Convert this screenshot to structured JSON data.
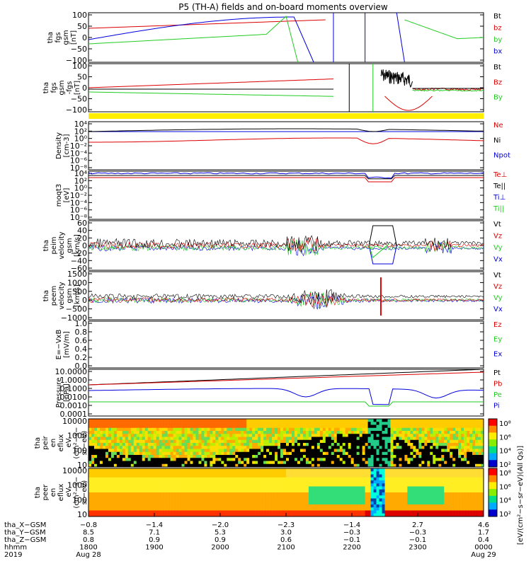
{
  "title": "P5 (TH-A) fields and on-board moments overview",
  "colors": {
    "black": "#000000",
    "red": "#dd0000",
    "green": "#22cc22",
    "blue": "#0000dd",
    "yellow": "#ffee00"
  },
  "chart_data": [
    {
      "type": "line",
      "ylabel": [
        "tha",
        "fgs",
        "gsm",
        "[nT]"
      ],
      "yticks": [
        "100",
        "50",
        "0",
        "−50",
        "−100"
      ],
      "ylim": [
        -100,
        100
      ],
      "legend": [
        {
          "name": "Bt",
          "color": "#000000"
        },
        {
          "name": "bz",
          "color": "#dd0000"
        },
        {
          "name": "by",
          "color": "#22cc22"
        },
        {
          "name": "bx",
          "color": "#0000dd"
        }
      ]
    },
    {
      "type": "line",
      "ylabel": [
        "tha",
        "fgs",
        "gsm",
        "-fgs",
        "[nT]"
      ],
      "yticks": [
        "100",
        "50",
        "0",
        "−50",
        "−100"
      ],
      "ylim": [
        -120,
        110
      ],
      "legend": [
        {
          "name": "Bt",
          "color": "#000000"
        },
        {
          "name": "Bz",
          "color": "#dd0000"
        },
        {
          "name": "By",
          "color": "#22cc22"
        }
      ]
    },
    {
      "type": "line",
      "ylabel": [
        "Density",
        "[cm-3]"
      ],
      "yticks": [
        "10⁴",
        "10²",
        "10⁰",
        "10⁻²",
        "10⁻⁴",
        "10⁻⁶",
        "10⁻⁸"
      ],
      "log_scale": true,
      "legend": [
        {
          "name": "Ne",
          "color": "#dd0000"
        },
        {
          "name": "Ni",
          "color": "#000000"
        },
        {
          "name": "Npot",
          "color": "#0000dd"
        }
      ]
    },
    {
      "type": "line",
      "ylabel": [
        "moqt3",
        "[eV]"
      ],
      "yticks": [
        "10⁴",
        "10²",
        "10⁰",
        "10⁻²",
        "10⁻⁴",
        "10⁻⁶",
        "10⁻⁸"
      ],
      "log_scale": true,
      "legend": [
        {
          "name": "Te⊥",
          "color": "#dd0000"
        },
        {
          "name": "Te||",
          "color": "#000000"
        },
        {
          "name": "Ti⊥",
          "color": "#0000dd"
        },
        {
          "name": "Ti||",
          "color": "#22cc22"
        }
      ]
    },
    {
      "type": "line",
      "ylabel": [
        "tha",
        "peim",
        "velocity",
        "gsm",
        "[km/s]"
      ],
      "yticks": [
        "60",
        "40",
        "20",
        "0",
        "−20",
        "−40",
        "−60"
      ],
      "ylim": [
        -60,
        60
      ],
      "legend": [
        {
          "name": "Vt",
          "color": "#000000"
        },
        {
          "name": "Vz",
          "color": "#dd0000"
        },
        {
          "name": "Vy",
          "color": "#22cc22"
        },
        {
          "name": "Vx",
          "color": "#0000dd"
        }
      ]
    },
    {
      "type": "line",
      "ylabel": [
        "tha",
        "peem",
        "velocity",
        "gsm",
        "[km/s]"
      ],
      "yticks": [
        "1500",
        "1000",
        "500",
        "0",
        "−500",
        "−1000"
      ],
      "ylim": [
        -1250,
        1500
      ],
      "legend": [
        {
          "name": "Vt",
          "color": "#000000"
        },
        {
          "name": "Vz",
          "color": "#dd0000"
        },
        {
          "name": "Vy",
          "color": "#22cc22"
        },
        {
          "name": "Vx",
          "color": "#0000dd"
        }
      ]
    },
    {
      "type": "line",
      "ylabel": [
        "E=−VxB",
        "[mV/m]"
      ],
      "yticks": [
        "1.0",
        "0.8",
        "0.6",
        "0.4",
        "0.2",
        "0.0"
      ],
      "ylim": [
        0,
        1
      ],
      "legend": [
        {
          "name": "Ez",
          "color": "#dd0000"
        },
        {
          "name": "Ey",
          "color": "#22cc22"
        },
        {
          "name": "Ex",
          "color": "#0000dd"
        }
      ]
    },
    {
      "type": "line",
      "ylabel": [
        "Pressure",
        "[nPa]"
      ],
      "yticks": [
        "10.0000",
        "1.0000",
        "0.1000",
        "0.0100",
        "0.0010",
        "0.0001"
      ],
      "log_scale": true,
      "legend": [
        {
          "name": "Pt",
          "color": "#000000"
        },
        {
          "name": "Pb",
          "color": "#dd0000"
        },
        {
          "name": "Pe",
          "color": "#22cc22"
        },
        {
          "name": "Pi",
          "color": "#0000dd"
        }
      ]
    },
    {
      "type": "heatmap",
      "ylabel": [
        "tha",
        "peir",
        "en",
        "eflux",
        "eV",
        "(cm²−s−",
        "sr−eV)"
      ],
      "yticks": [
        "10000",
        "1000",
        "100",
        "10"
      ],
      "colorbar_ticks": [
        "10⁸",
        "10⁶",
        "10⁴",
        "10²"
      ],
      "colorbar_label": "eV/(cm²−s−sr−eV)"
    },
    {
      "type": "heatmap",
      "ylabel": [
        "tha",
        "peer",
        "en",
        "eflux",
        "eV",
        "(cm²−s−",
        "sr−eV)"
      ],
      "yticks": [
        "10000",
        "1000",
        "100",
        "10"
      ],
      "colorbar_ticks": [
        "10⁸",
        "10⁶",
        "10⁴",
        "10²"
      ],
      "colorbar_label": "[eV/(cm²−s−sr−eV)]"
    }
  ],
  "colorbar_shared_label": "[eV/(cm²−s−sr−eV)(All Qs)]",
  "x_axis": {
    "rows": [
      {
        "label": "tha_X−GSM",
        "values": [
          "−0.8",
          "−1.4",
          "−2.0",
          "−2.3",
          "−1.4",
          "2.7",
          "4.6"
        ]
      },
      {
        "label": "tha_Y−GSM",
        "values": [
          "8.5",
          "7.1",
          "5.3",
          "3.0",
          "−0.3",
          "−0.3",
          "1.7"
        ]
      },
      {
        "label": "tha_Z−GSM",
        "values": [
          "0.8",
          "0.9",
          "0.9",
          "0.6",
          "−0.1",
          "−0.1",
          "0.4"
        ]
      },
      {
        "label": "hhmm",
        "values": [
          "1800",
          "1900",
          "2000",
          "2100",
          "2200",
          "2300",
          "0000"
        ]
      },
      {
        "label": "2019",
        "values": [
          "Aug 28",
          "",
          "",
          "",
          "",
          "",
          "Aug 29"
        ]
      }
    ]
  }
}
